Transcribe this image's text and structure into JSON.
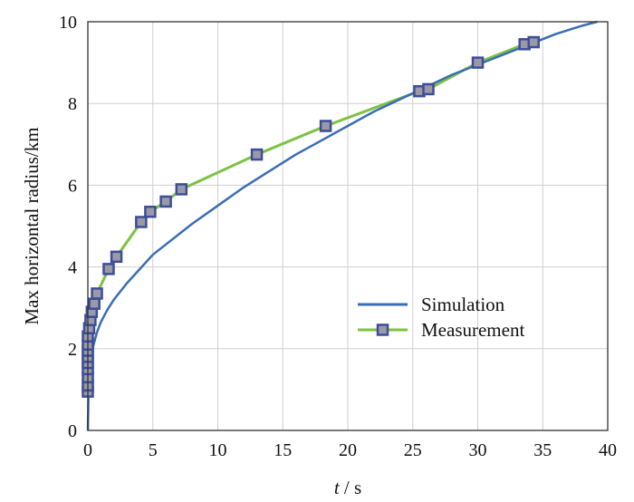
{
  "chart_data": {
    "type": "line",
    "title": "",
    "xlabel_italic": "t",
    "xlabel_rest": " / s",
    "ylabel": "Max horizontal radius/km",
    "xlim": [
      0,
      40
    ],
    "ylim": [
      0,
      10
    ],
    "xticks": [
      0,
      5,
      10,
      15,
      20,
      25,
      30,
      35,
      40
    ],
    "yticks": [
      0,
      2,
      4,
      6,
      8,
      10
    ],
    "grid": true,
    "legend_position": "center-right",
    "series": [
      {
        "name": "Simulation",
        "color": "#3a6db5",
        "marker": "none",
        "x": [
          0,
          0.05,
          0.1,
          0.2,
          0.4,
          0.7,
          1,
          1.5,
          2,
          3,
          4,
          5,
          6,
          8,
          10,
          12,
          14,
          16,
          18,
          20,
          22,
          24,
          26,
          28,
          30,
          32,
          34,
          36,
          38,
          39.2
        ],
        "y": [
          0,
          0.9,
          1.3,
          1.7,
          2.05,
          2.4,
          2.65,
          2.95,
          3.2,
          3.6,
          3.95,
          4.3,
          4.55,
          5.05,
          5.5,
          5.95,
          6.35,
          6.75,
          7.1,
          7.45,
          7.8,
          8.1,
          8.4,
          8.7,
          8.95,
          9.2,
          9.45,
          9.7,
          9.9,
          10.0
        ]
      },
      {
        "name": "Measurement",
        "color": "#7cc243",
        "marker": "square",
        "marker_color": "#3d4d9a",
        "x": [
          0,
          0,
          0,
          0,
          0,
          0,
          0,
          0,
          0,
          0.1,
          0.2,
          0.3,
          0.5,
          0.7,
          1.6,
          2.2,
          4.1,
          4.8,
          6.0,
          7.2,
          13.0,
          18.3,
          25.5,
          26.2,
          30.0,
          33.6,
          34.3
        ],
        "y": [
          0.95,
          1.1,
          1.3,
          1.5,
          1.65,
          1.8,
          1.95,
          2.1,
          2.3,
          2.5,
          2.7,
          2.9,
          3.1,
          3.35,
          3.95,
          4.25,
          5.1,
          5.35,
          5.6,
          5.9,
          6.75,
          7.45,
          8.3,
          8.35,
          9.0,
          9.45,
          9.5
        ]
      }
    ]
  }
}
